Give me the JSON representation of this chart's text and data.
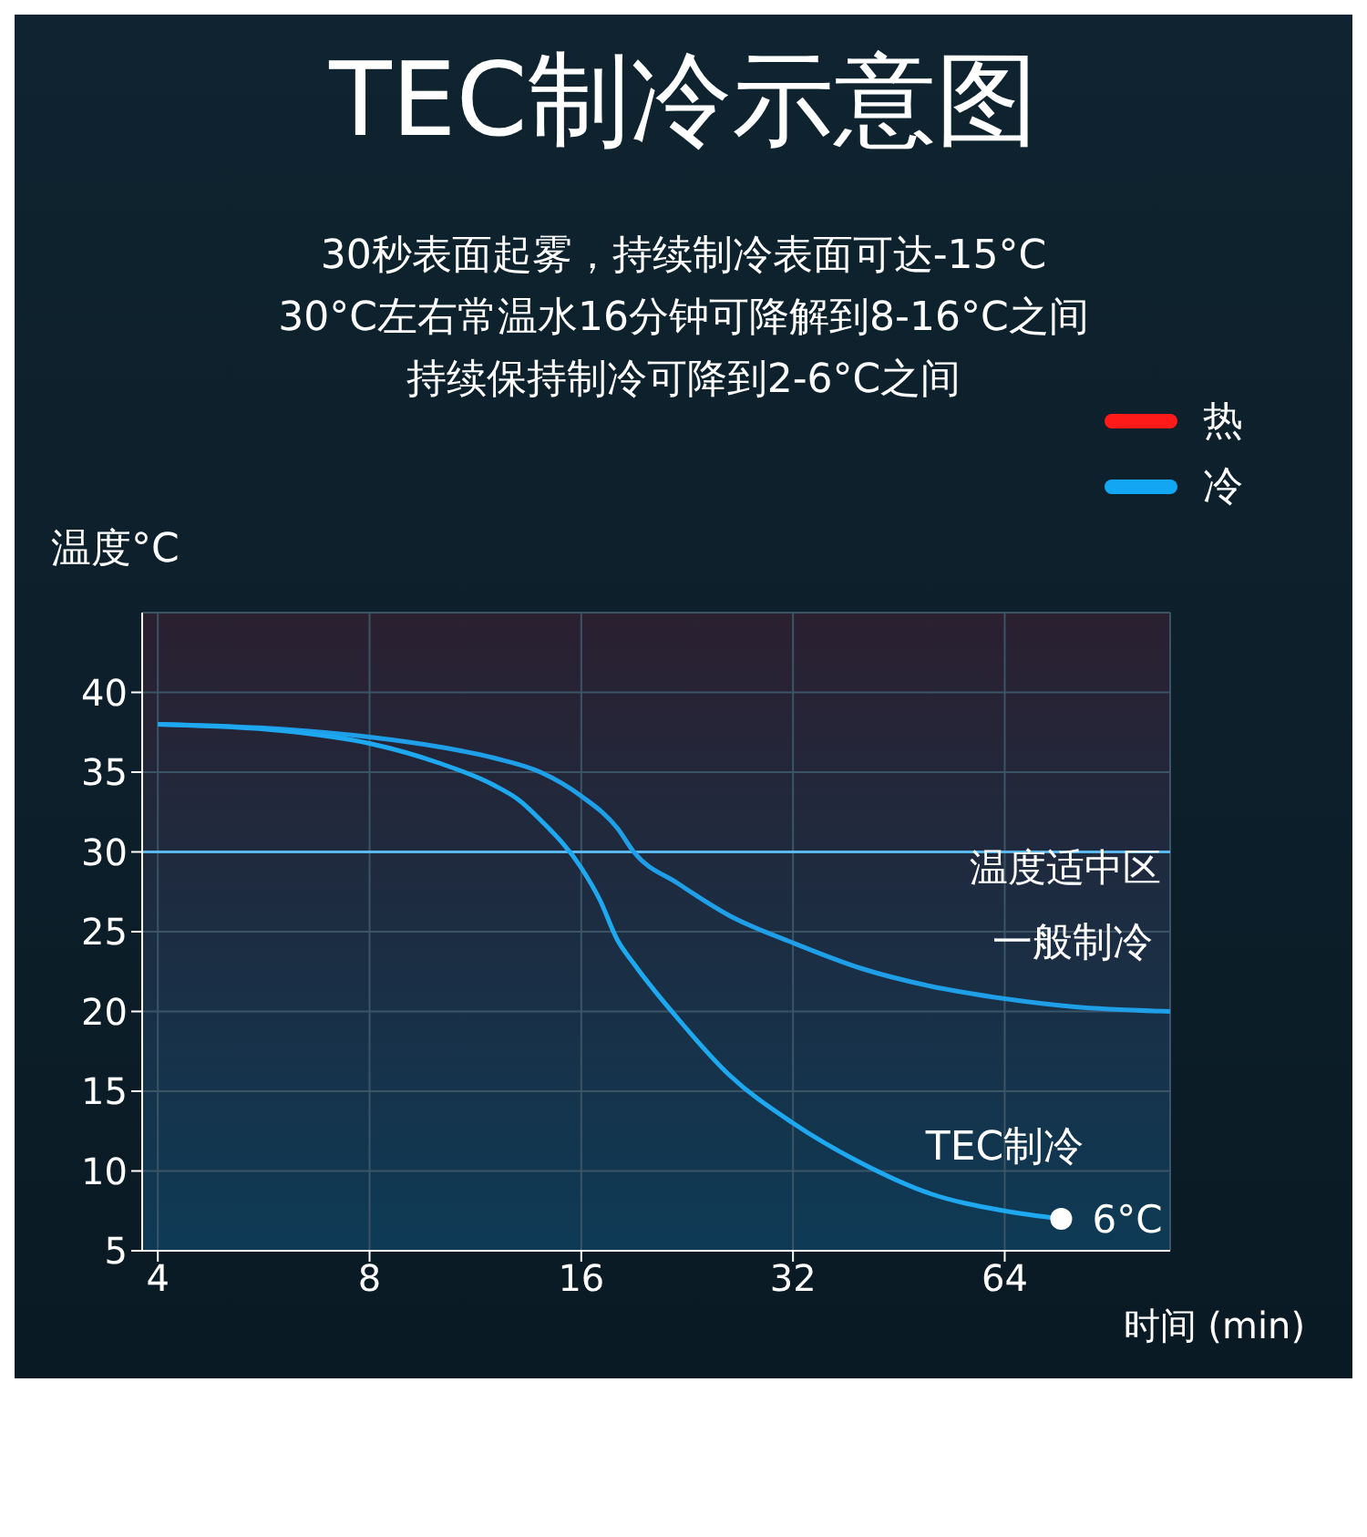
{
  "chart_data": {
    "type": "line",
    "title": "TEC制冷示意图",
    "subtitle": "30秒表面起雾，持续制冷表面可达-15°C",
    "xlabel": "时间 (min)",
    "ylabel": "温度°C",
    "log": "x",
    "xlim": [
      3.8,
      110
    ],
    "xticks": [
      4,
      8,
      16,
      32,
      64
    ],
    "ylim": [
      5,
      45
    ],
    "yticks": [
      5,
      10,
      15,
      20,
      25,
      30,
      35,
      40
    ],
    "grid": true,
    "legend": false,
    "marker": "none",
    "line_style": "solid",
    "series": [
      {
        "name": "一般制冷",
        "color": "#1e9fe8",
        "x": [
          4,
          6,
          8,
          10,
          12,
          14,
          16,
          18,
          19,
          22,
          26,
          32,
          40,
          50,
          64,
          80,
          110
        ],
        "values": [
          38,
          37.7,
          37.2,
          36.6,
          35.9,
          35,
          33.5,
          31.5,
          30,
          28,
          26,
          24.3,
          22.7,
          21.6,
          20.8,
          20.3,
          20
        ]
      },
      {
        "name": "TEC制冷",
        "color": "#1ea8f0",
        "x": [
          4,
          6,
          8,
          10,
          12,
          13,
          14,
          16,
          17,
          18,
          19,
          22,
          26,
          32,
          40,
          50,
          64,
          77
        ],
        "values": [
          38,
          37.6,
          36.8,
          35.6,
          34.2,
          33.3,
          32,
          29,
          27,
          24.5,
          23,
          19.5,
          16,
          13,
          10.5,
          8.6,
          7.5,
          7
        ]
      }
    ],
    "ref_lines": [
      {
        "axis": "y",
        "value": 30,
        "label": "温度适中区",
        "color": "#5ab8ee"
      }
    ],
    "annotations": [
      "30°C左右常温水16分钟可降解到8-16°C之间",
      "持续保持制冷可降到2-6°C之间",
      "热",
      "冷",
      {
        "text": "6°C",
        "x": 77,
        "y": 7
      }
    ]
  }
}
